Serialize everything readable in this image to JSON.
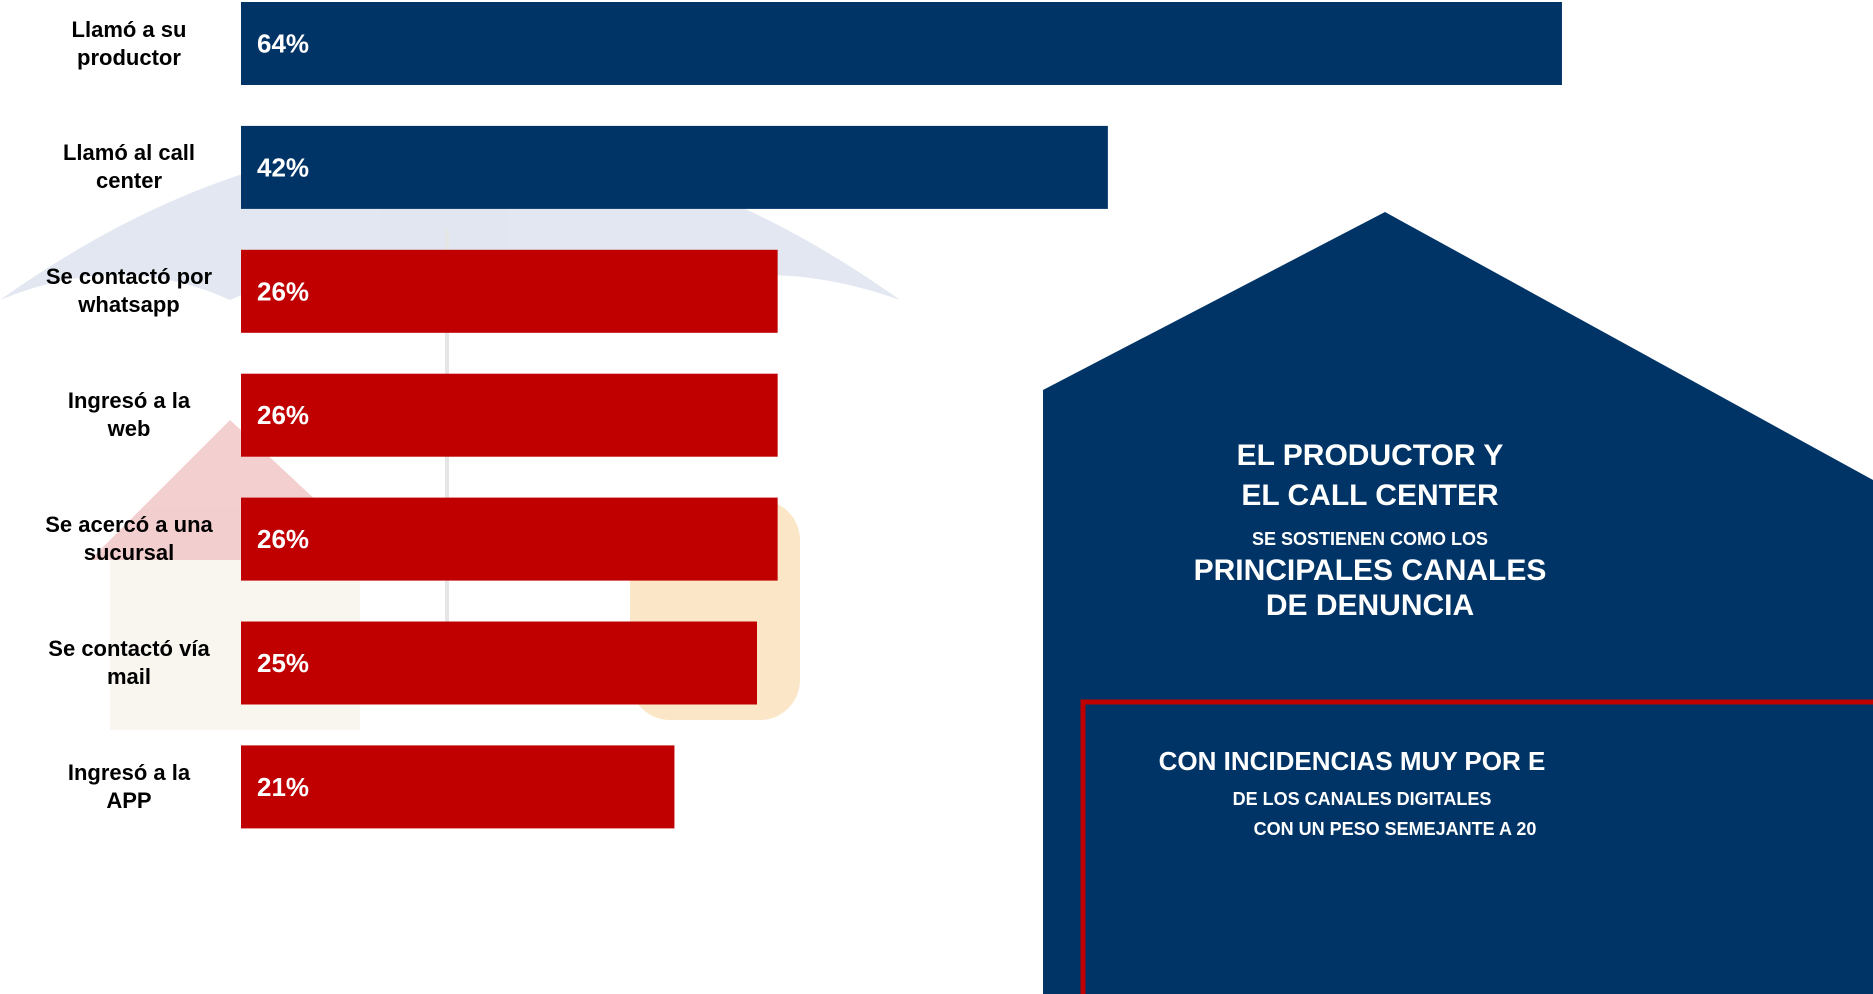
{
  "chart_data": {
    "type": "bar",
    "orientation": "horizontal",
    "categories": [
      "Llamó a su productor",
      "Llamó al call center",
      "Se contactó por whatsapp",
      "Ingresó a la web",
      "Se acercó a una sucursal",
      "Se contactó vía mail",
      "Ingresó a la APP"
    ],
    "values": [
      64,
      42,
      26,
      26,
      26,
      25,
      21
    ],
    "value_labels": [
      "64%",
      "42%",
      "26%",
      "26%",
      "26%",
      "25%",
      "21%"
    ],
    "colors": [
      "#003466",
      "#003466",
      "#c00000",
      "#c00000",
      "#c00000",
      "#c00000",
      "#c00000"
    ]
  },
  "callout": {
    "lines": [
      "EL PRODUCTOR Y",
      "EL CALL CENTER",
      "SE SOSTIENEN COMO LOS",
      "PRINCIPALES CANALES",
      "DE DENUNCIA"
    ]
  },
  "note": {
    "lines": [
      "CON INCIDENCIAS MUY POR E",
      "DE LOS CANALES DIGITALES",
      "CON UN PESO SEMEJANTE A 20"
    ]
  }
}
